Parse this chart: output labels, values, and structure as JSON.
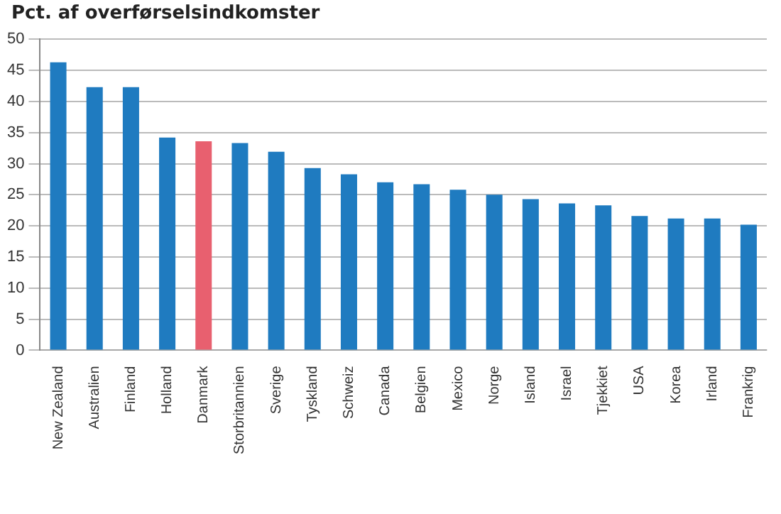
{
  "chart_data": {
    "type": "bar",
    "title": "Pct. af overførselsindkomster",
    "categories": [
      "New Zealand",
      "Australien",
      "Finland",
      "Holland",
      "Danmark",
      "Storbritannien",
      "Sverige",
      "Tyskland",
      "Schweiz",
      "Canada",
      "Belgien",
      "Mexico",
      "Norge",
      "Island",
      "Israel",
      "Tjekkiet",
      "USA",
      "Korea",
      "Irland",
      "Frankrig"
    ],
    "values": [
      46.3,
      42.3,
      42.3,
      34.2,
      33.6,
      33.3,
      31.9,
      29.3,
      28.3,
      27.0,
      26.7,
      25.8,
      25.0,
      24.3,
      23.6,
      23.3,
      21.6,
      21.2,
      21.2,
      20.2
    ],
    "colors": [
      "#1f7bc0",
      "#1f7bc0",
      "#1f7bc0",
      "#1f7bc0",
      "#e8606f",
      "#1f7bc0",
      "#1f7bc0",
      "#1f7bc0",
      "#1f7bc0",
      "#1f7bc0",
      "#1f7bc0",
      "#1f7bc0",
      "#1f7bc0",
      "#1f7bc0",
      "#1f7bc0",
      "#1f7bc0",
      "#1f7bc0",
      "#1f7bc0",
      "#1f7bc0",
      "#1f7bc0"
    ],
    "ylim": [
      0,
      50
    ],
    "yticks": [
      0,
      5,
      10,
      15,
      20,
      25,
      30,
      35,
      40,
      45,
      50
    ],
    "grid": "y",
    "legend": false
  }
}
